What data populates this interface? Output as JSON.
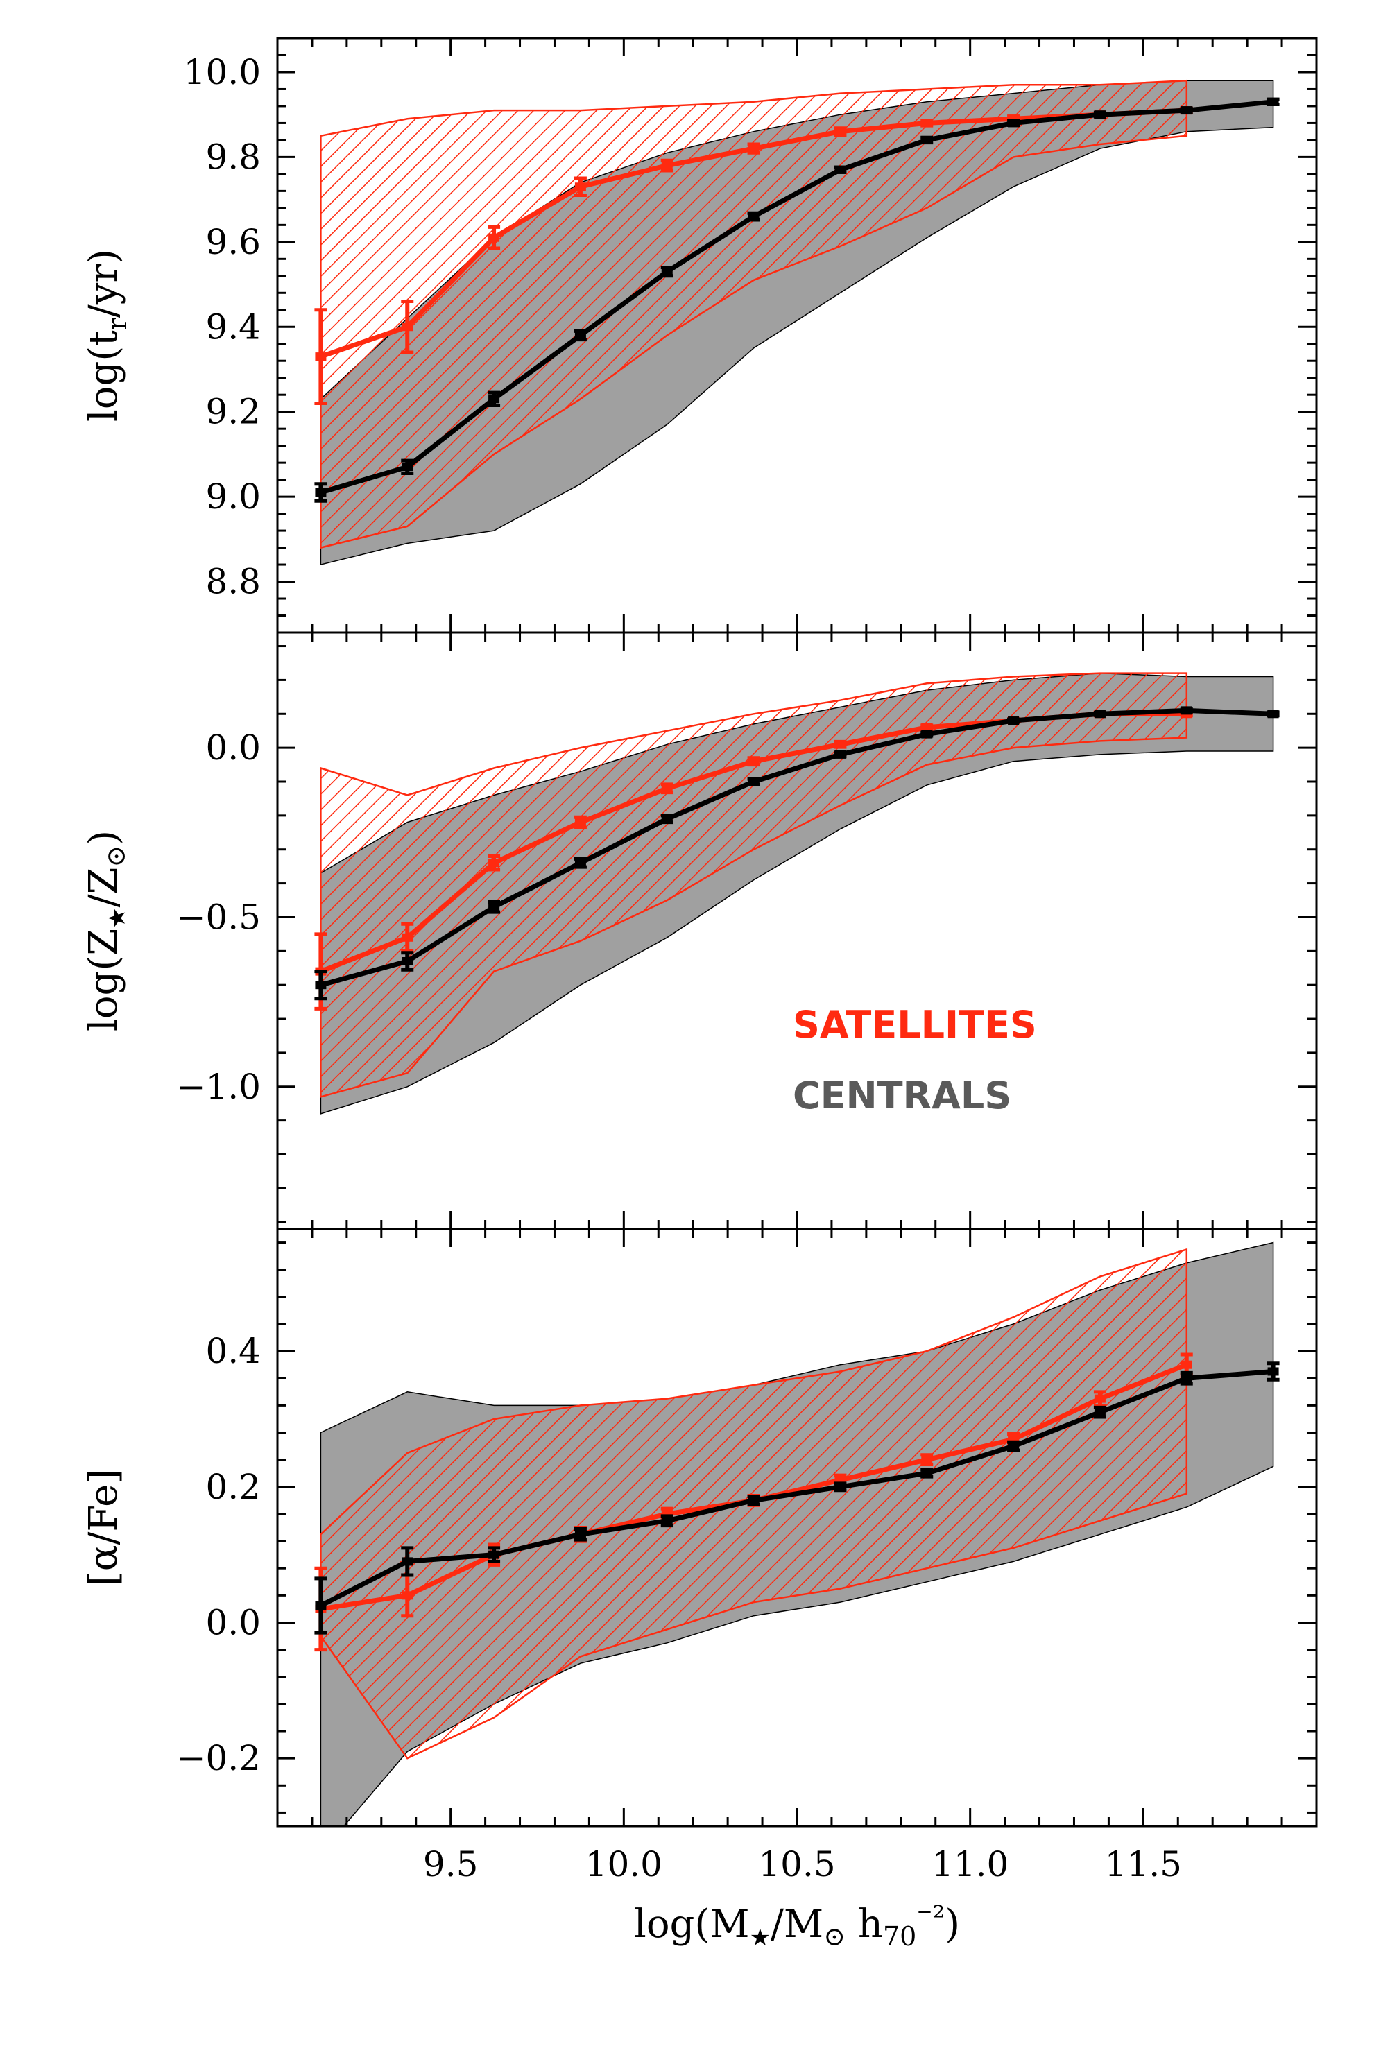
{
  "colors": {
    "central_band": "#a0a0a0",
    "central_line": "#000000",
    "satellite": "#ff2a10",
    "legend_central": "#5a5a5a"
  },
  "legend": {
    "satellites": "SATELLITES",
    "centrals": "CENTRALS"
  },
  "chart_data": [
    {
      "type": "line",
      "panel": "top",
      "ylabel": "log(t_r/yr)",
      "ylim": [
        8.68,
        10.08
      ],
      "xlim": [
        9.0,
        12.0
      ],
      "yticks": [
        8.8,
        9.0,
        9.2,
        9.4,
        9.6,
        9.8,
        10.0
      ],
      "ytick_labels": [
        "8.8",
        "9.0",
        "9.2",
        "9.4",
        "9.6",
        "9.8",
        "10.0"
      ],
      "series": [
        {
          "name": "CENTRALS",
          "x": [
            9.125,
            9.375,
            9.625,
            9.875,
            10.125,
            10.375,
            10.625,
            10.875,
            11.125,
            11.375,
            11.625,
            11.875
          ],
          "y": [
            9.01,
            9.07,
            9.23,
            9.38,
            9.53,
            9.66,
            9.77,
            9.84,
            9.88,
            9.9,
            9.91,
            9.93
          ],
          "err": [
            0.02,
            0.015,
            0.015,
            0.01,
            0.01,
            0.008,
            0.006,
            0.006,
            0.005,
            0.005,
            0.005,
            0.006
          ],
          "band_lo": [
            8.84,
            8.89,
            8.92,
            9.03,
            9.17,
            9.35,
            9.48,
            9.61,
            9.73,
            9.82,
            9.86,
            9.87
          ],
          "band_hi": [
            9.23,
            9.42,
            9.61,
            9.74,
            9.81,
            9.86,
            9.9,
            9.93,
            9.95,
            9.97,
            9.98,
            9.98
          ]
        },
        {
          "name": "SATELLITES",
          "x": [
            9.125,
            9.375,
            9.625,
            9.875,
            10.125,
            10.375,
            10.625,
            10.875,
            11.125,
            11.375,
            11.625
          ],
          "y": [
            9.33,
            9.4,
            9.61,
            9.73,
            9.78,
            9.82,
            9.86,
            9.88,
            9.89,
            9.9,
            9.91
          ],
          "err": [
            0.11,
            0.06,
            0.025,
            0.02,
            0.012,
            0.01,
            0.008,
            0.006,
            0.006,
            0.005,
            0.005
          ],
          "band_lo": [
            8.88,
            8.93,
            9.1,
            9.23,
            9.38,
            9.51,
            9.59,
            9.68,
            9.8,
            9.83,
            9.85
          ],
          "band_hi": [
            9.85,
            9.89,
            9.91,
            9.91,
            9.92,
            9.93,
            9.95,
            9.96,
            9.97,
            9.97,
            9.98
          ]
        }
      ]
    },
    {
      "type": "line",
      "panel": "middle",
      "ylabel": "log(Z★/Z⊙)",
      "ylim": [
        -1.42,
        0.34
      ],
      "xlim": [
        9.0,
        12.0
      ],
      "yticks": [
        -1.0,
        -0.5,
        0.0
      ],
      "ytick_labels": [
        "−1.0",
        "−0.5",
        "0.0"
      ],
      "series": [
        {
          "name": "CENTRALS",
          "x": [
            9.125,
            9.375,
            9.625,
            9.875,
            10.125,
            10.375,
            10.625,
            10.875,
            11.125,
            11.375,
            11.625,
            11.875
          ],
          "y": [
            -0.7,
            -0.63,
            -0.47,
            -0.34,
            -0.21,
            -0.1,
            -0.02,
            0.04,
            0.08,
            0.1,
            0.11,
            0.1
          ],
          "err": [
            0.04,
            0.025,
            0.015,
            0.012,
            0.01,
            0.008,
            0.006,
            0.005,
            0.004,
            0.004,
            0.004,
            0.005
          ],
          "band_lo": [
            -1.08,
            -1.0,
            -0.87,
            -0.7,
            -0.56,
            -0.39,
            -0.24,
            -0.11,
            -0.04,
            -0.02,
            -0.01,
            -0.01
          ],
          "band_hi": [
            -0.37,
            -0.22,
            -0.14,
            -0.07,
            0.01,
            0.07,
            0.12,
            0.17,
            0.2,
            0.22,
            0.21,
            0.21
          ]
        },
        {
          "name": "SATELLITES",
          "x": [
            9.125,
            9.375,
            9.625,
            9.875,
            10.125,
            10.375,
            10.625,
            10.875,
            11.125,
            11.375,
            11.625
          ],
          "y": [
            -0.66,
            -0.56,
            -0.34,
            -0.22,
            -0.12,
            -0.04,
            0.01,
            0.06,
            0.08,
            0.1,
            0.1
          ],
          "err": [
            0.11,
            0.04,
            0.02,
            0.015,
            0.012,
            0.01,
            0.008,
            0.006,
            0.005,
            0.005,
            0.005
          ],
          "band_lo": [
            -1.03,
            -0.96,
            -0.66,
            -0.57,
            -0.45,
            -0.3,
            -0.17,
            -0.05,
            0.0,
            0.02,
            0.03
          ],
          "band_hi": [
            -0.06,
            -0.14,
            -0.06,
            0.0,
            0.05,
            0.1,
            0.14,
            0.19,
            0.21,
            0.22,
            0.22
          ]
        }
      ]
    },
    {
      "type": "line",
      "panel": "bottom",
      "ylabel": "[α/Fe]",
      "ylim": [
        -0.3,
        0.58
      ],
      "xlim": [
        9.0,
        12.0
      ],
      "xticks": [
        9.5,
        10.0,
        10.5,
        11.0,
        11.5
      ],
      "xtick_labels": [
        "9.5",
        "10.0",
        "10.5",
        "11.0",
        "11.5"
      ],
      "xlabel": "log(M★/M⊙ h70⁻²)",
      "yticks": [
        -0.2,
        0.0,
        0.2,
        0.4
      ],
      "ytick_labels": [
        "−0.2",
        "0.0",
        "0.2",
        "0.4"
      ],
      "series": [
        {
          "name": "CENTRALS",
          "x": [
            9.125,
            9.375,
            9.625,
            9.875,
            10.125,
            10.375,
            10.625,
            10.875,
            11.125,
            11.375,
            11.625,
            11.875
          ],
          "y": [
            0.025,
            0.09,
            0.1,
            0.13,
            0.15,
            0.18,
            0.2,
            0.22,
            0.26,
            0.31,
            0.36,
            0.37
          ],
          "err": [
            0.04,
            0.02,
            0.01,
            0.008,
            0.007,
            0.006,
            0.005,
            0.005,
            0.006,
            0.007,
            0.008,
            0.012
          ],
          "band_lo": [
            -0.34,
            -0.19,
            -0.12,
            -0.06,
            -0.03,
            0.01,
            0.03,
            0.06,
            0.09,
            0.13,
            0.17,
            0.23
          ],
          "band_hi": [
            0.28,
            0.34,
            0.32,
            0.32,
            0.33,
            0.35,
            0.38,
            0.4,
            0.44,
            0.49,
            0.53,
            0.56
          ]
        },
        {
          "name": "SATELLITES",
          "x": [
            9.125,
            9.375,
            9.625,
            9.875,
            10.125,
            10.375,
            10.625,
            10.875,
            11.125,
            11.375,
            11.625
          ],
          "y": [
            0.02,
            0.04,
            0.1,
            0.13,
            0.16,
            0.18,
            0.21,
            0.24,
            0.27,
            0.33,
            0.38
          ],
          "err": [
            0.06,
            0.03,
            0.015,
            0.01,
            0.008,
            0.007,
            0.007,
            0.007,
            0.008,
            0.01,
            0.015
          ],
          "band_lo": [
            -0.02,
            -0.2,
            -0.14,
            -0.05,
            -0.01,
            0.03,
            0.05,
            0.08,
            0.11,
            0.15,
            0.19
          ],
          "band_hi": [
            0.13,
            0.25,
            0.3,
            0.32,
            0.33,
            0.35,
            0.37,
            0.4,
            0.45,
            0.51,
            0.55
          ]
        }
      ]
    }
  ]
}
